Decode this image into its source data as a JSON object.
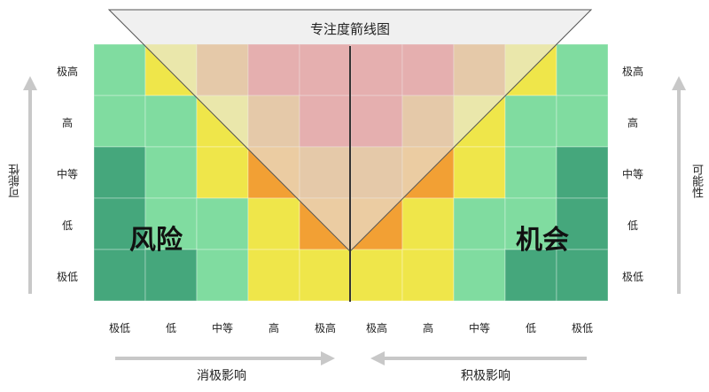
{
  "funnel_title": "专注度箭线图",
  "y_axis_title_left": "可能性",
  "y_axis_title_right": "可能性",
  "y_levels": [
    "极高",
    "高",
    "中等",
    "低",
    "极低"
  ],
  "x_levels": [
    "极低",
    "低",
    "中等",
    "高",
    "极高",
    "极高",
    "高",
    "中等",
    "低",
    "极低"
  ],
  "zone_left": "风险",
  "zone_right": "机会",
  "x_axis_negative": "消极影响",
  "x_axis_positive": "积极影响",
  "colors": {
    "deep_green": "#45a77c",
    "light_green": "#80dca0",
    "yellow": "#efe64a",
    "orange": "#f2a034",
    "dark_orange": "#e39844",
    "red": "#e25656",
    "funnel": "#e6e6e6",
    "arrow": "#c8c8c8"
  },
  "grid": [
    [
      "light_green",
      "yellow",
      "dark_orange",
      "red",
      "red",
      "red",
      "red",
      "dark_orange",
      "yellow",
      "light_green"
    ],
    [
      "light_green",
      "light_green",
      "yellow",
      "dark_orange",
      "red",
      "red",
      "dark_orange",
      "yellow",
      "light_green",
      "light_green"
    ],
    [
      "deep_green",
      "light_green",
      "yellow",
      "orange",
      "dark_orange",
      "dark_orange",
      "orange",
      "yellow",
      "light_green",
      "deep_green"
    ],
    [
      "deep_green",
      "light_green",
      "light_green",
      "yellow",
      "orange",
      "orange",
      "yellow",
      "light_green",
      "light_green",
      "deep_green"
    ],
    [
      "deep_green",
      "deep_green",
      "light_green",
      "yellow",
      "yellow",
      "yellow",
      "yellow",
      "light_green",
      "deep_green",
      "deep_green"
    ]
  ]
}
